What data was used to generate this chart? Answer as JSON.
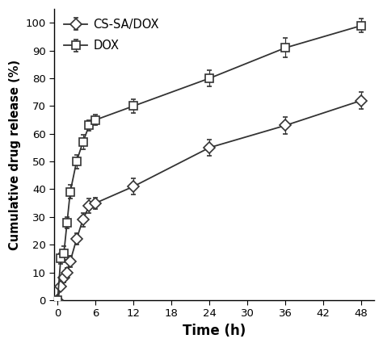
{
  "cs_sa_dox_x": [
    0,
    0.5,
    1,
    1.5,
    2,
    3,
    4,
    5,
    6,
    12,
    24,
    36,
    48
  ],
  "cs_sa_dox_y": [
    0,
    5,
    8,
    10,
    14,
    22,
    29,
    34,
    35,
    41,
    55,
    63,
    72
  ],
  "cs_sa_dox_yerr": [
    0,
    1.0,
    1.5,
    1.5,
    2.0,
    2.0,
    2.5,
    2.5,
    2.0,
    3.0,
    3.0,
    3.0,
    3.0
  ],
  "dox_x": [
    0,
    0.5,
    1,
    1.5,
    2,
    3,
    4,
    5,
    6,
    12,
    24,
    36,
    48
  ],
  "dox_y": [
    0,
    15,
    17,
    28,
    39,
    50,
    57,
    63,
    65,
    70,
    80,
    91,
    99
  ],
  "dox_yerr": [
    0,
    2.0,
    2.5,
    2.0,
    2.5,
    2.5,
    2.5,
    2.0,
    2.0,
    2.5,
    3.0,
    3.5,
    2.5
  ],
  "xlabel": "Time (h)",
  "ylabel": "Cumulative drug release (%)",
  "legend_cs_sa_dox": "CS-SA/DOX",
  "legend_dox": "DOX",
  "xlim": [
    -0.5,
    50
  ],
  "ylim": [
    0,
    105
  ],
  "xticks": [
    0,
    6,
    12,
    18,
    24,
    30,
    36,
    42,
    48
  ],
  "yticks": [
    0,
    10,
    20,
    30,
    40,
    50,
    60,
    70,
    80,
    90,
    100
  ],
  "line_color": "#333333",
  "background_color": "#ffffff",
  "marker_size": 7,
  "linewidth": 1.3
}
